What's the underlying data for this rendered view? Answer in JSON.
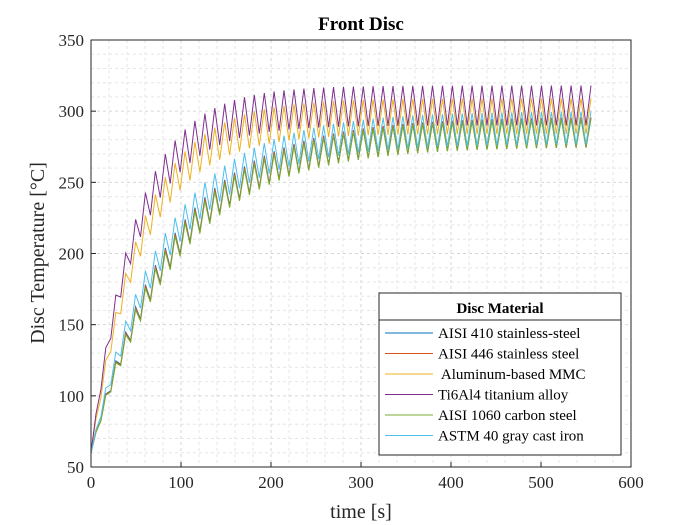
{
  "chart_data": {
    "type": "line",
    "title": "Front Disc",
    "xlabel": "time [s]",
    "ylabel": "Disc Temperature [°C]",
    "xlim": [
      0,
      600
    ],
    "ylim": [
      50,
      350
    ],
    "xticks": [
      "0",
      "100",
      "200",
      "300",
      "400",
      "500",
      "600"
    ],
    "yticks": [
      "50",
      "100",
      "150",
      "200",
      "250",
      "300",
      "350"
    ],
    "grid": "on (major and minor, dashed)",
    "legend": {
      "title": "Disc Material",
      "placement": "bottom-right"
    },
    "t_end_s": 560,
    "cycle_period_s": 11,
    "initial_temp": 60,
    "series": [
      {
        "name": "AISI 410 stainless-steel",
        "color": "#0072BD",
        "steady_min": 275,
        "steady_max": 296,
        "tau_s": 91
      },
      {
        "name": "AISI 446 stainless steel",
        "color": "#D95319",
        "steady_min": 275,
        "steady_max": 296,
        "tau_s": 92
      },
      {
        "name": " Aluminum-based MMC",
        "color": "#EDB120",
        "steady_min": 284,
        "steady_max": 309,
        "tau_s": 56
      },
      {
        "name": "Ti6Al4 titanium alloy",
        "color": "#7E2F8E",
        "steady_min": 290,
        "steady_max": 318,
        "tau_s": 50
      },
      {
        "name": "AISI 1060 carbon steel",
        "color": "#77AC30",
        "steady_min": 275,
        "steady_max": 295,
        "tau_s": 93
      },
      {
        "name": "ASTM 40 gray cast iron",
        "color": "#4DBEEE",
        "steady_min": 277,
        "steady_max": 300,
        "tau_s": 83
      }
    ]
  }
}
